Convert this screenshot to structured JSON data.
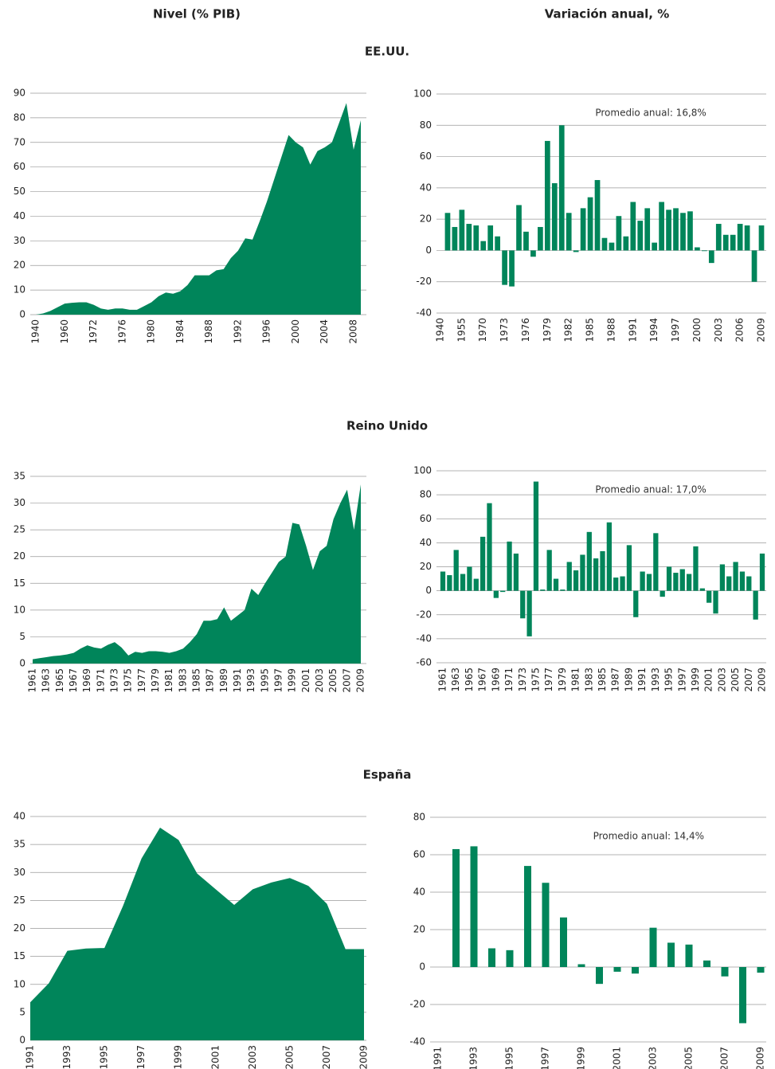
{
  "headers": [
    "Nivel (% PIB)",
    "Variación anual, %"
  ],
  "sections": [
    "EE.UU.",
    "Reino Unido",
    "España"
  ],
  "chart_data": [
    {
      "type": "area",
      "color": "#00855a",
      "categories": [
        "1940",
        null,
        null,
        null,
        "1960",
        null,
        null,
        null,
        "1972",
        null,
        null,
        null,
        "1976",
        null,
        null,
        null,
        "1980",
        null,
        null,
        null,
        "1984",
        null,
        null,
        null,
        "1988",
        null,
        null,
        null,
        "1992",
        null,
        null,
        null,
        "1996",
        null,
        null,
        null,
        "2000",
        null,
        null,
        null,
        "2004",
        null,
        null,
        null,
        "2008",
        null
      ],
      "values": [
        0,
        0.5,
        1.5,
        3,
        4.5,
        4.8,
        5,
        5,
        4,
        2.5,
        2,
        2.5,
        2.5,
        2,
        2,
        3.5,
        5,
        7.5,
        9,
        8.5,
        9.5,
        12,
        16,
        16,
        16,
        18,
        18.5,
        23,
        26,
        31,
        30.5,
        38,
        46,
        55,
        64,
        73,
        70,
        68,
        61,
        66.5,
        68,
        70,
        78,
        86,
        67,
        79
      ],
      "ylim": [
        0,
        90
      ],
      "yticks": [
        0,
        10,
        20,
        30,
        40,
        50,
        60,
        70,
        80,
        90
      ],
      "grid": true
    },
    {
      "type": "bar",
      "color": "#00855a",
      "annotation": "Promedio anual: 16,8%",
      "categories": [
        "1940",
        null,
        null,
        "1955",
        null,
        null,
        "1970",
        null,
        null,
        "1973",
        null,
        null,
        "1976",
        null,
        null,
        "1979",
        null,
        null,
        "1982",
        null,
        null,
        "1985",
        null,
        null,
        "1988",
        null,
        null,
        "1991",
        null,
        null,
        "1994",
        null,
        null,
        "1997",
        null,
        null,
        "2000",
        null,
        null,
        "2003",
        null,
        null,
        "2006",
        null,
        null,
        "2009"
      ],
      "values": [
        null,
        24,
        15,
        26,
        17,
        16,
        6,
        16,
        9,
        -22,
        -23,
        29,
        12,
        -4,
        15,
        70,
        43,
        80,
        24,
        -1,
        27,
        34,
        45,
        8,
        5,
        22,
        9,
        31,
        19,
        27,
        5,
        31,
        26,
        27,
        24,
        25,
        2,
        0,
        -8,
        17,
        10,
        10,
        17,
        16,
        -20,
        16
      ],
      "ylim": [
        -40,
        100
      ],
      "yticks": [
        -40,
        -20,
        0,
        20,
        40,
        60,
        80,
        100
      ],
      "grid": true
    },
    {
      "type": "area",
      "color": "#00855a",
      "categories": [
        "1961",
        null,
        "1963",
        null,
        "1965",
        null,
        "1967",
        null,
        "1969",
        null,
        "1971",
        null,
        "1973",
        null,
        "1975",
        null,
        "1977",
        null,
        "1979",
        null,
        "1981",
        null,
        "1983",
        null,
        "1985",
        null,
        "1987",
        null,
        "1989",
        null,
        "1991",
        null,
        "1993",
        null,
        "1995",
        null,
        "1997",
        null,
        "1999",
        null,
        "2001",
        null,
        "2003",
        null,
        "2005",
        null,
        "2007",
        null,
        "2009"
      ],
      "values": [
        0.8,
        1,
        1.2,
        1.4,
        1.5,
        1.7,
        2,
        2.8,
        3.4,
        3,
        2.8,
        3.5,
        4,
        3,
        1.5,
        2.2,
        2,
        2.3,
        2.3,
        2.2,
        2,
        2.3,
        2.8,
        4,
        5.5,
        8,
        8,
        8.3,
        10.5,
        8,
        9,
        10,
        14,
        12.8,
        15,
        17,
        19,
        20,
        26.3,
        26,
        22,
        17.5,
        21,
        22,
        27,
        30,
        32.5,
        25,
        33.5
      ],
      "ylim": [
        0,
        35
      ],
      "yticks": [
        0,
        5,
        10,
        15,
        20,
        25,
        30,
        35
      ],
      "grid": true
    },
    {
      "type": "bar",
      "color": "#00855a",
      "annotation": "Promedio anual: 17,0%",
      "categories": [
        "1961",
        null,
        "1963",
        null,
        "1965",
        null,
        "1967",
        null,
        "1969",
        null,
        "1971",
        null,
        "1973",
        null,
        "1975",
        null,
        "1977",
        null,
        "1979",
        null,
        "1981",
        null,
        "1983",
        null,
        "1985",
        null,
        "1987",
        null,
        "1989",
        null,
        "1991",
        null,
        "1993",
        null,
        "1995",
        null,
        "1997",
        null,
        "1999",
        null,
        "2001",
        null,
        "2003",
        null,
        "2005",
        null,
        "2007",
        null,
        "2009"
      ],
      "values": [
        16,
        13,
        34,
        14,
        20,
        10,
        45,
        73,
        -6,
        -1,
        41,
        31,
        -23,
        -38,
        91,
        1,
        34,
        10,
        1,
        24,
        17,
        30,
        49,
        27,
        33,
        57,
        11,
        12,
        38,
        -22,
        16,
        14,
        48,
        -5,
        20,
        15,
        18,
        14,
        37,
        2,
        -10,
        -19,
        22,
        12,
        24,
        16,
        12,
        -24,
        31
      ],
      "ylim": [
        -60,
        100
      ],
      "yticks": [
        -60,
        -40,
        -20,
        0,
        20,
        40,
        60,
        80,
        100
      ],
      "grid": true
    },
    {
      "type": "area",
      "color": "#00855a",
      "categories": [
        "1991",
        null,
        "1993",
        null,
        "1995",
        null,
        "1997",
        null,
        "1999",
        null,
        "2001",
        null,
        "2003",
        null,
        "2005",
        null,
        "2007",
        null,
        "2009"
      ],
      "values": [
        6.8,
        10.2,
        16,
        16.4,
        16.5,
        24,
        32.5,
        38,
        35.8,
        29.8,
        27,
        24.2,
        27,
        28.2,
        29,
        27.6,
        24.4,
        16.3,
        16.3
      ],
      "ylim": [
        0,
        40
      ],
      "yticks": [
        0,
        5,
        10,
        15,
        20,
        25,
        30,
        35,
        40
      ],
      "grid": true
    },
    {
      "type": "bar",
      "color": "#00855a",
      "annotation": "Promedio anual: 14,4%",
      "categories": [
        "1991",
        null,
        "1993",
        null,
        "1995",
        null,
        "1997",
        null,
        "1999",
        null,
        "2001",
        null,
        "2003",
        null,
        "2005",
        null,
        "2007",
        null,
        "2009"
      ],
      "values": [
        null,
        63,
        64.5,
        10,
        9,
        54,
        45,
        26.5,
        1.5,
        -9,
        -2.5,
        -3.5,
        21,
        13,
        12,
        3.5,
        -5,
        -30,
        -3
      ],
      "ylim": [
        -40,
        80
      ],
      "yticks": [
        -40,
        -20,
        0,
        20,
        40,
        60,
        80
      ],
      "grid": true
    }
  ]
}
